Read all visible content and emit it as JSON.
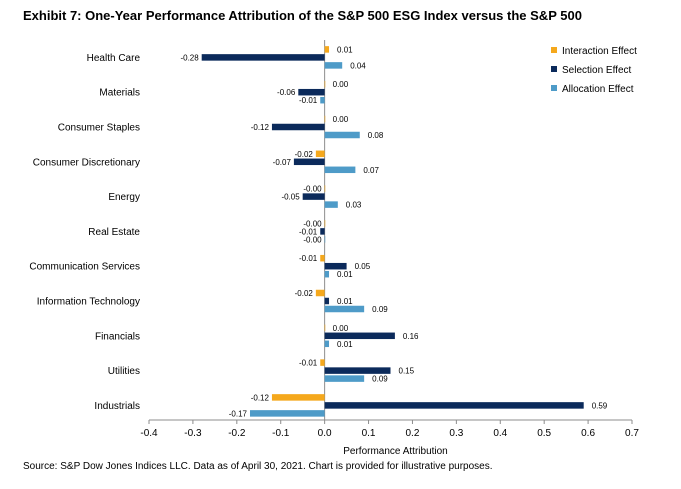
{
  "title": "Exhibit 7: One-Year Performance Attribution of the S&P 500 ESG Index versus the S&P 500",
  "source": "Source: S&P Dow Jones Indices LLC. Data as of April 30, 2021. Chart is provided for illustrative purposes.",
  "chart_data": {
    "type": "bar",
    "orientation": "horizontal",
    "title": "Exhibit 7: One-Year Performance Attribution of the S&P 500 ESG Index versus the S&P 500",
    "xlabel": "Performance Attribution",
    "ylabel": "",
    "xlim": [
      -0.4,
      0.7
    ],
    "xticks": [
      "-0.4",
      "-0.3",
      "-0.2",
      "-0.1",
      "0.0",
      "0.1",
      "0.2",
      "0.3",
      "0.4",
      "0.5",
      "0.6",
      "0.7"
    ],
    "grid": false,
    "legend_position": "top-right",
    "categories": [
      "Health Care",
      "Materials",
      "Consumer Staples",
      "Consumer Discretionary",
      "Energy",
      "Real Estate",
      "Communication Services",
      "Information Technology",
      "Financials",
      "Utilities",
      "Industrials"
    ],
    "series": [
      {
        "name": "Interaction Effect",
        "color": "#F5A81C",
        "values": [
          0.01,
          0.0,
          0.0,
          -0.02,
          -0.0,
          -0.0,
          -0.01,
          -0.02,
          0.0,
          -0.01,
          -0.12
        ],
        "labels": [
          "0.01",
          "0.00",
          "0.00",
          "-0.02",
          "-0.00",
          "-0.00",
          "-0.01",
          "-0.02",
          "0.00",
          "-0.01",
          "-0.12"
        ]
      },
      {
        "name": "Selection Effect",
        "color": "#0B2A5B",
        "values": [
          -0.28,
          -0.06,
          -0.12,
          -0.07,
          -0.05,
          -0.01,
          0.05,
          0.01,
          0.16,
          0.15,
          0.59
        ],
        "labels": [
          "-0.28",
          "-0.06",
          "-0.12",
          "-0.07",
          "-0.05",
          "-0.01",
          "0.05",
          "0.01",
          "0.16",
          "0.15",
          "0.59"
        ]
      },
      {
        "name": "Allocation Effect",
        "color": "#4E9BC8",
        "values": [
          0.04,
          -0.01,
          0.08,
          0.07,
          0.03,
          -0.0,
          0.01,
          0.09,
          0.01,
          0.09,
          -0.17
        ],
        "labels": [
          "0.04",
          "-0.01",
          "0.08",
          "0.07",
          "0.03",
          "-0.00",
          "0.01",
          "0.09",
          "0.01",
          "0.09",
          "-0.17"
        ]
      }
    ]
  }
}
